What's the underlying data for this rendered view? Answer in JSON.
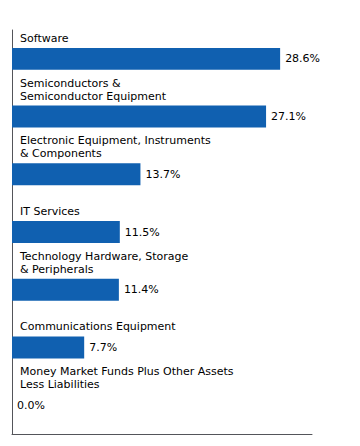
{
  "chart_data": {
    "type": "bar",
    "orientation": "horizontal",
    "categories": [
      "Software",
      "Semiconductors &\nSemiconductor Equipment",
      "Electronic Equipment, Instruments\n& Components",
      "IT Services",
      "Technology Hardware, Storage\n& Peripherals",
      "Communications Equipment",
      "Money Market Funds Plus Other Assets\nLess Liabilities"
    ],
    "values": [
      28.6,
      27.1,
      13.7,
      11.5,
      11.4,
      7.7,
      0.0
    ],
    "value_labels": [
      "28.6%",
      "27.1%",
      "13.7%",
      "11.5%",
      "11.4%",
      "7.7%",
      "0.0%"
    ],
    "color": "#1060b0",
    "xlim": [
      0,
      32
    ],
    "data_labels": true,
    "grid": false,
    "tick_labels": "y"
  }
}
